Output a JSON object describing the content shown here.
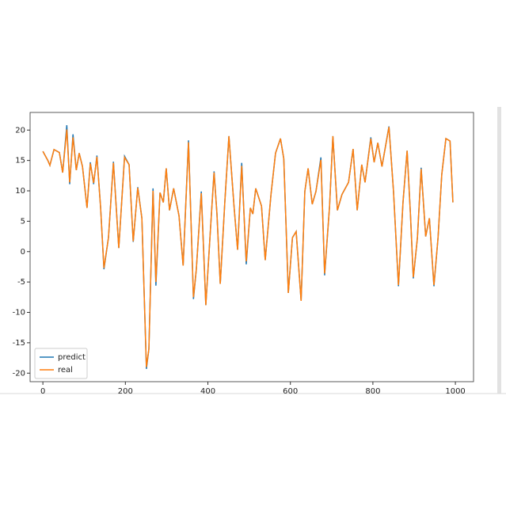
{
  "chart_data": {
    "type": "line",
    "x": [
      0,
      12,
      17,
      27,
      40,
      48,
      58,
      65,
      73,
      81,
      88,
      96,
      107,
      115,
      123,
      131,
      140,
      148,
      159,
      171,
      184,
      198,
      209,
      219,
      230,
      240,
      251,
      257,
      267,
      274,
      284,
      292,
      299,
      307,
      317,
      330,
      340,
      353,
      365,
      372,
      384,
      395,
      405,
      415,
      422,
      430,
      441,
      451,
      463,
      472,
      482,
      493,
      503,
      509,
      516,
      530,
      539,
      553,
      564,
      576,
      584,
      595,
      605,
      614,
      626,
      635,
      643,
      653,
      662,
      674,
      683,
      695,
      703,
      714,
      725,
      741,
      752,
      762,
      773,
      781,
      795,
      803,
      812,
      822,
      839,
      850,
      862,
      873,
      883,
      891,
      898,
      908,
      917,
      928,
      937,
      948,
      958,
      967,
      977,
      987,
      994
    ],
    "series": [
      {
        "name": "predict",
        "color": "#1f77b4",
        "values": [
          16.5,
          15,
          14.2,
          16.8,
          16.3,
          13,
          20.8,
          11.1,
          19.3,
          13.4,
          16.2,
          14,
          7.2,
          14.7,
          11.1,
          15.8,
          7.2,
          -2.9,
          2.3,
          14.8,
          0.6,
          15.7,
          14.3,
          1.6,
          10.6,
          5.5,
          -19.3,
          -16,
          10.4,
          -5.6,
          9.7,
          8.1,
          13.7,
          6.8,
          10.4,
          5.9,
          -2.3,
          18.3,
          -7.8,
          -2.9,
          9.9,
          -8.8,
          2.3,
          13.2,
          6.2,
          -5.3,
          8.1,
          19,
          7.8,
          0.3,
          14.6,
          -2.1,
          7.2,
          6.2,
          10.4,
          7.5,
          -1.4,
          9.4,
          16.2,
          18.6,
          15.3,
          -6.8,
          2.3,
          3.3,
          -8.1,
          9.9,
          13.7,
          7.8,
          9.9,
          15.5,
          -3.9,
          7.5,
          19,
          6.8,
          9.4,
          11.4,
          16.9,
          6.8,
          14.3,
          11.4,
          18.8,
          14.7,
          17.9,
          14,
          20.6,
          9.9,
          -5.7,
          8.1,
          16.6,
          6.2,
          -4.4,
          2.3,
          13.8,
          2.5,
          5.5,
          -5.7,
          2.3,
          12.7,
          18.6,
          18.2,
          8.1
        ]
      },
      {
        "name": "real",
        "color": "#ff7f0e",
        "values": [
          16.5,
          15,
          14.2,
          16.8,
          16.3,
          13,
          20.1,
          11.4,
          18.8,
          13.4,
          16.2,
          14,
          7.2,
          14.5,
          11.3,
          15.6,
          7.2,
          -2.7,
          2.3,
          14.6,
          0.6,
          15.5,
          14.3,
          1.7,
          10.5,
          5.5,
          -19,
          -16,
          10,
          -5,
          9.7,
          8.1,
          13.7,
          6.8,
          10.4,
          5.9,
          -2.3,
          18,
          -7.5,
          -2.9,
          9.6,
          -8.8,
          2.3,
          13,
          6.2,
          -5.3,
          8.1,
          19,
          7.8,
          0.3,
          14.1,
          -1.6,
          7.2,
          6.2,
          10.4,
          7.5,
          -1.4,
          9.4,
          16.2,
          18.6,
          15.3,
          -6.8,
          2.3,
          3.3,
          -8.1,
          9.9,
          13.7,
          7.8,
          9.9,
          15.1,
          -3.6,
          7.5,
          19,
          6.8,
          9.4,
          11.4,
          16.9,
          6.8,
          14.3,
          11.4,
          18.6,
          14.7,
          17.9,
          14,
          20.5,
          9.9,
          -5.5,
          8.1,
          16.6,
          6.2,
          -4.2,
          2.3,
          13.6,
          2.5,
          5.5,
          -5.5,
          2.3,
          12.7,
          18.6,
          18.2,
          8.1
        ]
      }
    ],
    "xlim": [
      -31,
      1044
    ],
    "ylim": [
      -21.4,
      22.9
    ],
    "xticks": [
      0,
      200,
      400,
      600,
      800,
      1000
    ],
    "yticks": [
      -20,
      -15,
      -10,
      -5,
      0,
      5,
      10,
      15,
      20
    ],
    "legend": "lower left"
  }
}
